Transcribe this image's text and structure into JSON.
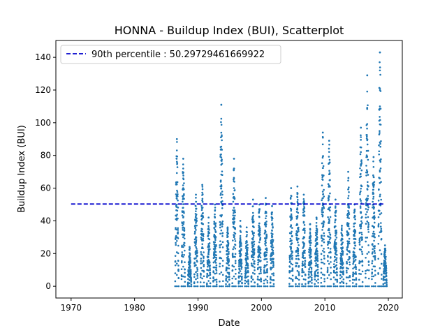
{
  "chart_data": {
    "type": "scatter",
    "title": "HONNA - Buildup Index (BUI), Scatterplot",
    "xlabel": "Date",
    "ylabel": "Buildup Index (BUI)",
    "xlim": [
      1967.6,
      2022.2
    ],
    "ylim": [
      -7.2,
      150.3
    ],
    "x_ticks": [
      1970,
      1980,
      1990,
      2000,
      2010,
      2020
    ],
    "y_ticks": [
      0,
      20,
      40,
      60,
      80,
      100,
      120,
      140
    ],
    "grid": false,
    "legend_position": "top-left",
    "reference_line": {
      "label": "90th percentile : 50.29729461669922",
      "value": 50.29729461669922,
      "x_range": [
        1970,
        2019.5
      ],
      "color": "#0000cc",
      "style": "dashed"
    },
    "series": [
      {
        "color": "#1f77b4",
        "seasons": [
          {
            "year": 1986.4,
            "peak": 90
          },
          {
            "year": 1987.4,
            "peak": 78
          },
          {
            "year": 1988.4,
            "peak": 24
          },
          {
            "year": 1989.4,
            "peak": 56
          },
          {
            "year": 1990.4,
            "peak": 62
          },
          {
            "year": 1991.4,
            "peak": 42
          },
          {
            "year": 1992.4,
            "peak": 50
          },
          {
            "year": 1993.4,
            "peak": 111
          },
          {
            "year": 1994.4,
            "peak": 36
          },
          {
            "year": 1995.4,
            "peak": 78
          },
          {
            "year": 1996.4,
            "peak": 40
          },
          {
            "year": 1997.4,
            "peak": 36
          },
          {
            "year": 1998.4,
            "peak": 53
          },
          {
            "year": 1999.4,
            "peak": 50
          },
          {
            "year": 2000.4,
            "peak": 54
          },
          {
            "year": 2001.4,
            "peak": 49
          },
          {
            "year": 2004.4,
            "peak": 60
          },
          {
            "year": 2005.4,
            "peak": 61
          },
          {
            "year": 2006.4,
            "peak": 56
          },
          {
            "year": 2007.4,
            "peak": 38
          },
          {
            "year": 2008.4,
            "peak": 42
          },
          {
            "year": 2009.4,
            "peak": 94
          },
          {
            "year": 2010.4,
            "peak": 89
          },
          {
            "year": 2011.4,
            "peak": 53
          },
          {
            "year": 2012.4,
            "peak": 37
          },
          {
            "year": 2013.4,
            "peak": 70
          },
          {
            "year": 2014.4,
            "peak": 50
          },
          {
            "year": 2015.4,
            "peak": 97
          },
          {
            "year": 2016.4,
            "peak": 129
          },
          {
            "year": 2017.4,
            "peak": 79
          },
          {
            "year": 2018.4,
            "peak": 143
          },
          {
            "year": 2019.2,
            "peak": 25
          }
        ]
      }
    ]
  }
}
